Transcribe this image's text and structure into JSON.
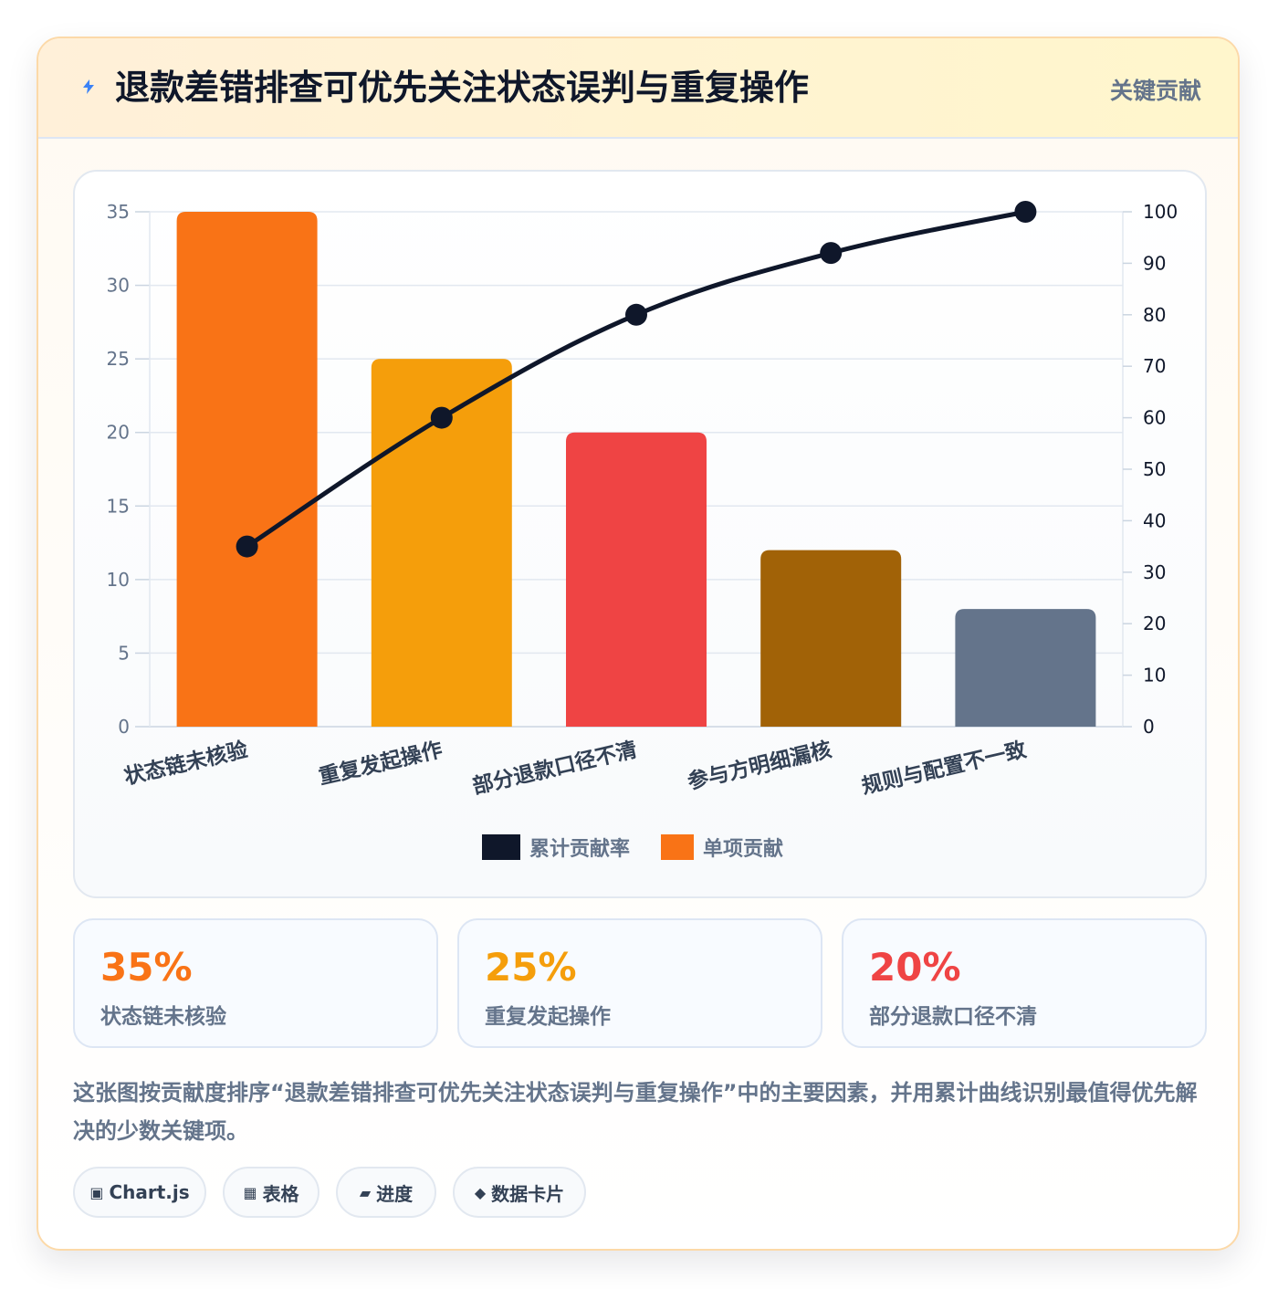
{
  "header": {
    "icon": "lightning-icon",
    "title": "退款差错排查可优先关注状态误判与重复操作",
    "tag": "关键贡献"
  },
  "chart_data": {
    "type": "bar",
    "categories": [
      "状态链未核验",
      "重复发起操作",
      "部分退款口径不清",
      "参与方明细漏核",
      "规则与配置不一致"
    ],
    "series": [
      {
        "name": "单项贡献",
        "type": "bar",
        "axis": "left",
        "values": [
          35,
          25,
          20,
          12,
          8
        ],
        "colors": [
          "#f97316",
          "#f59e0b",
          "#ef4444",
          "#a16207",
          "#64748b"
        ]
      },
      {
        "name": "累计贡献率",
        "type": "line",
        "axis": "right",
        "values": [
          35,
          60,
          80,
          92,
          100
        ],
        "color": "#0f172a"
      }
    ],
    "left_axis": {
      "min": 0,
      "max": 35,
      "ticks": [
        0,
        5,
        10,
        15,
        20,
        25,
        30,
        35
      ]
    },
    "right_axis": {
      "min": 0,
      "max": 100,
      "ticks": [
        0,
        10,
        20,
        30,
        40,
        50,
        60,
        70,
        80,
        90,
        100
      ]
    },
    "legend": [
      "累计贡献率",
      "单项贡献"
    ],
    "legend_position": "bottom",
    "grid": true
  },
  "stats": [
    {
      "value": "35%",
      "label": "状态链未核验",
      "color": "#f97316"
    },
    {
      "value": "25%",
      "label": "重复发起操作",
      "color": "#f59e0b"
    },
    {
      "value": "20%",
      "label": "部分退款口径不清",
      "color": "#ef4444"
    }
  ],
  "description": "这张图按贡献度排序“退款差错排查可优先关注状态误判与重复操作”中的主要因素，并用累计曲线识别最值得优先解决的少数关键项。",
  "tags": [
    {
      "icon": "chip-icon",
      "glyph": "▣",
      "label": "Chart.js"
    },
    {
      "icon": "table-icon",
      "glyph": "▦",
      "label": "表格"
    },
    {
      "icon": "progress-icon",
      "glyph": "▰",
      "label": "进度"
    },
    {
      "icon": "diamond-icon",
      "glyph": "◆",
      "label": "数据卡片"
    }
  ]
}
